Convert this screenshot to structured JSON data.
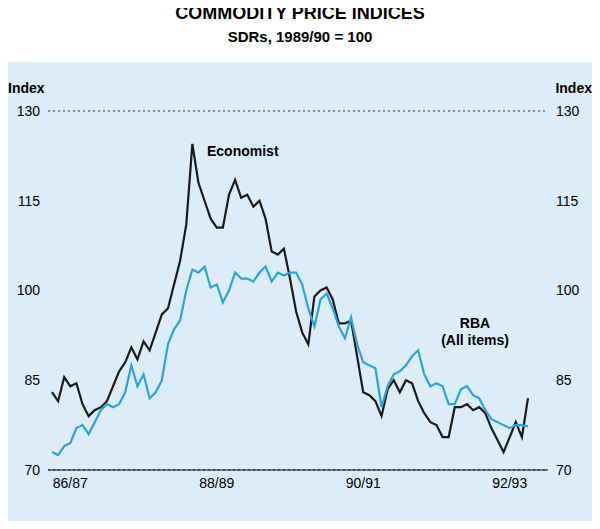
{
  "chart_data": {
    "type": "line",
    "title": "COMMODITY PRICE INDICES",
    "subtitle": "SDRs, 1989/90 = 100",
    "y_label": "Index",
    "categories": [
      null,
      null,
      null,
      "86/87",
      null,
      null,
      null,
      null,
      null,
      null,
      null,
      null,
      null,
      null,
      null,
      null,
      null,
      null,
      null,
      null,
      null,
      null,
      null,
      null,
      null,
      null,
      null,
      "88/89",
      null,
      null,
      null,
      null,
      null,
      null,
      null,
      null,
      null,
      null,
      null,
      null,
      null,
      null,
      null,
      null,
      null,
      null,
      null,
      null,
      null,
      null,
      null,
      "90/91",
      null,
      null,
      null,
      null,
      null,
      null,
      null,
      null,
      null,
      null,
      null,
      null,
      null,
      null,
      null,
      null,
      null,
      null,
      null,
      null,
      null,
      null,
      null,
      "92/93",
      null,
      null,
      null
    ],
    "series": [
      {
        "name": "Economist",
        "color": "#1a1a1a",
        "values": [
          83,
          81.5,
          85.5,
          84,
          84.5,
          81,
          79,
          80,
          80.5,
          81.5,
          84,
          86.5,
          88,
          90.5,
          88.5,
          91.5,
          90,
          93,
          96,
          97,
          101,
          105,
          111,
          124.5,
          118,
          115,
          112,
          110.5,
          110.5,
          116,
          118.5,
          115.5,
          116,
          114,
          115,
          112,
          106.5,
          106,
          107,
          102,
          96.5,
          93,
          91,
          99,
          100,
          100.5,
          98.5,
          94.5,
          94.5,
          95,
          89,
          83,
          82.5,
          81.5,
          79,
          83.5,
          85,
          83,
          85,
          84.5,
          81.5,
          79.5,
          78,
          77.5,
          75.5,
          75.5,
          80.5,
          80.5,
          81,
          80,
          80.5,
          79.5,
          77,
          75,
          73,
          75.5,
          78,
          75.5,
          82
        ]
      },
      {
        "name": "RBA (All items)",
        "color": "#29a3dc",
        "values": [
          73,
          72.5,
          74,
          74.5,
          77,
          77.5,
          76,
          78,
          80,
          81,
          80.5,
          81,
          83,
          87.5,
          84,
          86,
          82,
          83,
          85,
          91,
          93.5,
          95,
          100,
          103.5,
          103,
          104,
          100.5,
          101,
          98,
          100,
          103,
          102,
          102,
          101.5,
          103,
          104,
          101.5,
          103,
          102.5,
          103,
          103,
          101,
          97,
          94,
          98.5,
          99.5,
          97,
          94,
          92,
          95.5,
          91,
          88,
          87.5,
          87,
          80.5,
          84,
          86,
          86.5,
          87.5,
          89,
          90,
          86,
          84,
          84.5,
          84,
          81,
          81,
          83.5,
          84,
          82.5,
          82,
          80,
          78.5,
          78,
          77.5,
          77,
          77.5,
          77.5,
          77.3
        ]
      }
    ],
    "ylim": [
      70,
      130
    ],
    "yticks": [
      70,
      85,
      100,
      115,
      130
    ],
    "grid": true
  }
}
